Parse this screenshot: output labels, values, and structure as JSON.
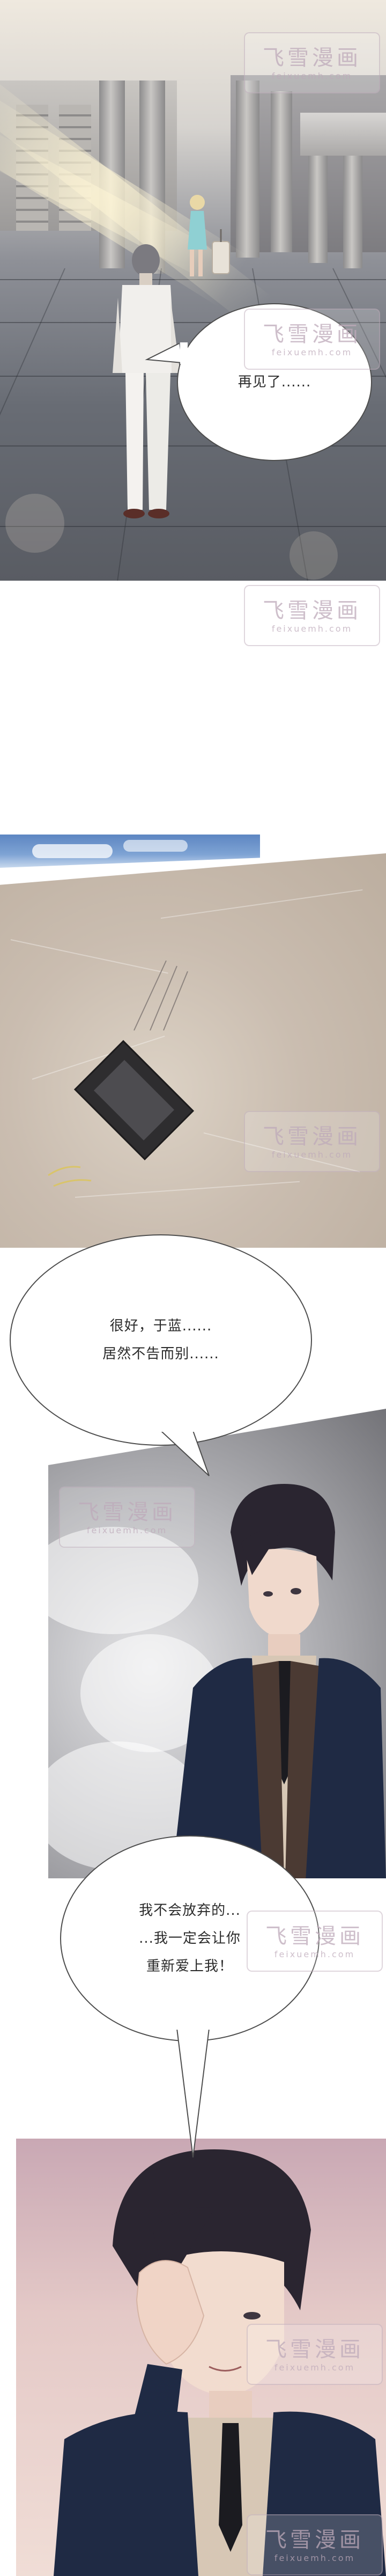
{
  "comic": {
    "bubbles": {
      "goodbye": "再见了......",
      "very_good": "很好，于蓝......\n居然不告而别......",
      "wont_give_up": "我不会放弃的...\n...我一定会让你\n重新爱上我！"
    },
    "watermark": {
      "title": "飞雪漫画",
      "url": "feixuemh.com"
    }
  },
  "colors": {
    "bubble_border": "#4d4d4d",
    "suit": "#1f2a44",
    "hair": "#2a2530"
  }
}
